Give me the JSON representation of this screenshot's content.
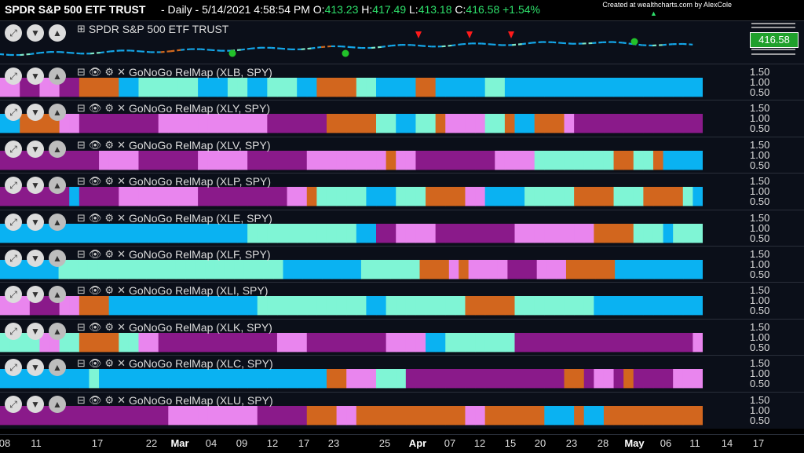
{
  "header": {
    "title": "SPDR S&P 500 ETF TRUST",
    "period": "- Daily - 5/14/2021 4:58:54 PM",
    "o_label": "O:",
    "o_value": "413.23",
    "h_label": "H:",
    "h_value": "417.49",
    "l_label": "L:",
    "l_value": "413.18",
    "c_label": "C:",
    "c_value": "416.58",
    "change": "+1.54%",
    "credit": "Created at wealthcharts.com by AlexCole"
  },
  "price_panel": {
    "title": "SPDR S&P 500 ETF TRUST",
    "price_label": "416.58",
    "colors": {
      "badge": "#20a02c",
      "up": "#14a6e8",
      "weak_up": "#7fe8c8",
      "down": "#d2691e",
      "dot": "#22c22a",
      "arrow": "#ff1a1a"
    }
  },
  "chart_data": {
    "type": "heatmap",
    "title": "",
    "x_ticks": [
      "08",
      "11",
      "17",
      "22",
      "Mar",
      "04",
      "09",
      "12",
      "17",
      "23",
      "25",
      "Apr",
      "07",
      "12",
      "15",
      "20",
      "23",
      "28",
      "May",
      "06",
      "11",
      "14",
      "17"
    ],
    "y_ticks": [
      "1.50",
      "1.00",
      "0.50"
    ],
    "color_legend": {
      "B": "#0ab2f2",
      "A": "#7ff5d5",
      "P": "#e985ee",
      "M": "#8a1a8a",
      "O": "#d2661e"
    },
    "price_series": {
      "name": "SPDR S&P 500 ETF TRUST",
      "last": 416.58,
      "markers": {
        "green_dots": 4,
        "red_down_arrows": 3
      }
    },
    "panels": [
      {
        "name": "GoNoGo RelMap (XLB, SPY)",
        "cells": "PPMMPPMMOOOOBBAAAAAABBBAABBAAABBOOOOAABBBBOOBBBBBAABBBBBBBBBBBBBBBBBBBB"
      },
      {
        "name": "GoNoGo RelMap (XLY, SPY)",
        "cells": "BBOOOOPPMMMMMMMMPPPPPPPPPPPMMMMMMOOOOOAABBAAOPPPPAAOBBOOOPMMMMMMMMMMMMM"
      },
      {
        "name": "GoNoGo RelMap (XLV, SPY)",
        "cells": "MMMMMMMMMMPPPPMMMMMMPPPPPMMMMMMPPPPPPPPOPPMMMMMMMMPPPPAAAAAAAAOOAAOBBBB"
      },
      {
        "name": "GoNoGo RelMap (XLP, SPY)",
        "cells": "MMMMMMMBMMMMPPPPPPPPMMMMMMMMMPPOAAAAABBBAAAOOOOPPBBBBAAAAAOOOOAAAOOOOAB"
      },
      {
        "name": "GoNoGo RelMap (XLE, SPY)",
        "cells": "BBBBBBBBBBBBBBBBBBBBBBBBBAAAAAAAAAAABBMMPPPPMMMMMMMMPPPPPPPPOOOOAAABAAA"
      },
      {
        "name": "GoNoGo RelMap (XLF, SPY)",
        "cells": "BBBBBBAAAAAAAAAAAAAAAAAAAAAAABBBBBBBBAAAAAAOOOPOPPPPMMMPPPOOOOOBBBBBBBBB"
      },
      {
        "name": "GoNoGo RelMap (XLI, SPY)",
        "cells": "PPPMMMPPOOOBBBBBBBBBBBBBBBAAAAAAAAAAABBAAAAAAAAOOOOOAAAAAAAABBBBBBBBBBB"
      },
      {
        "name": "GoNoGo RelMap (XLK, SPY)",
        "cells": "AAAAPPAAOOOOAAPPMMMMMMMMMMMMPPPMMMMMMMMPPPPBBAAAAAAAMMMMMMMMMMMMMMMMMMP"
      },
      {
        "name": "GoNoGo RelMap (XLC, SPY)",
        "cells": "BBBBBBBBBABBBBBBBBBBBBBBBBBBBBBBBOOPPPAAAMMMMMMMMMMMMMMMMOOMPPMOMMMMPPP"
      },
      {
        "name": "GoNoGo RelMap (XLU, SPY)",
        "cells": "MMMMMMMMMMMMMMMMMPPPPPPPPPMMMMMOOOPPOOOOOOOOOOOPPOOOOOOBBBOBBOOOOOOOOOO"
      }
    ]
  }
}
